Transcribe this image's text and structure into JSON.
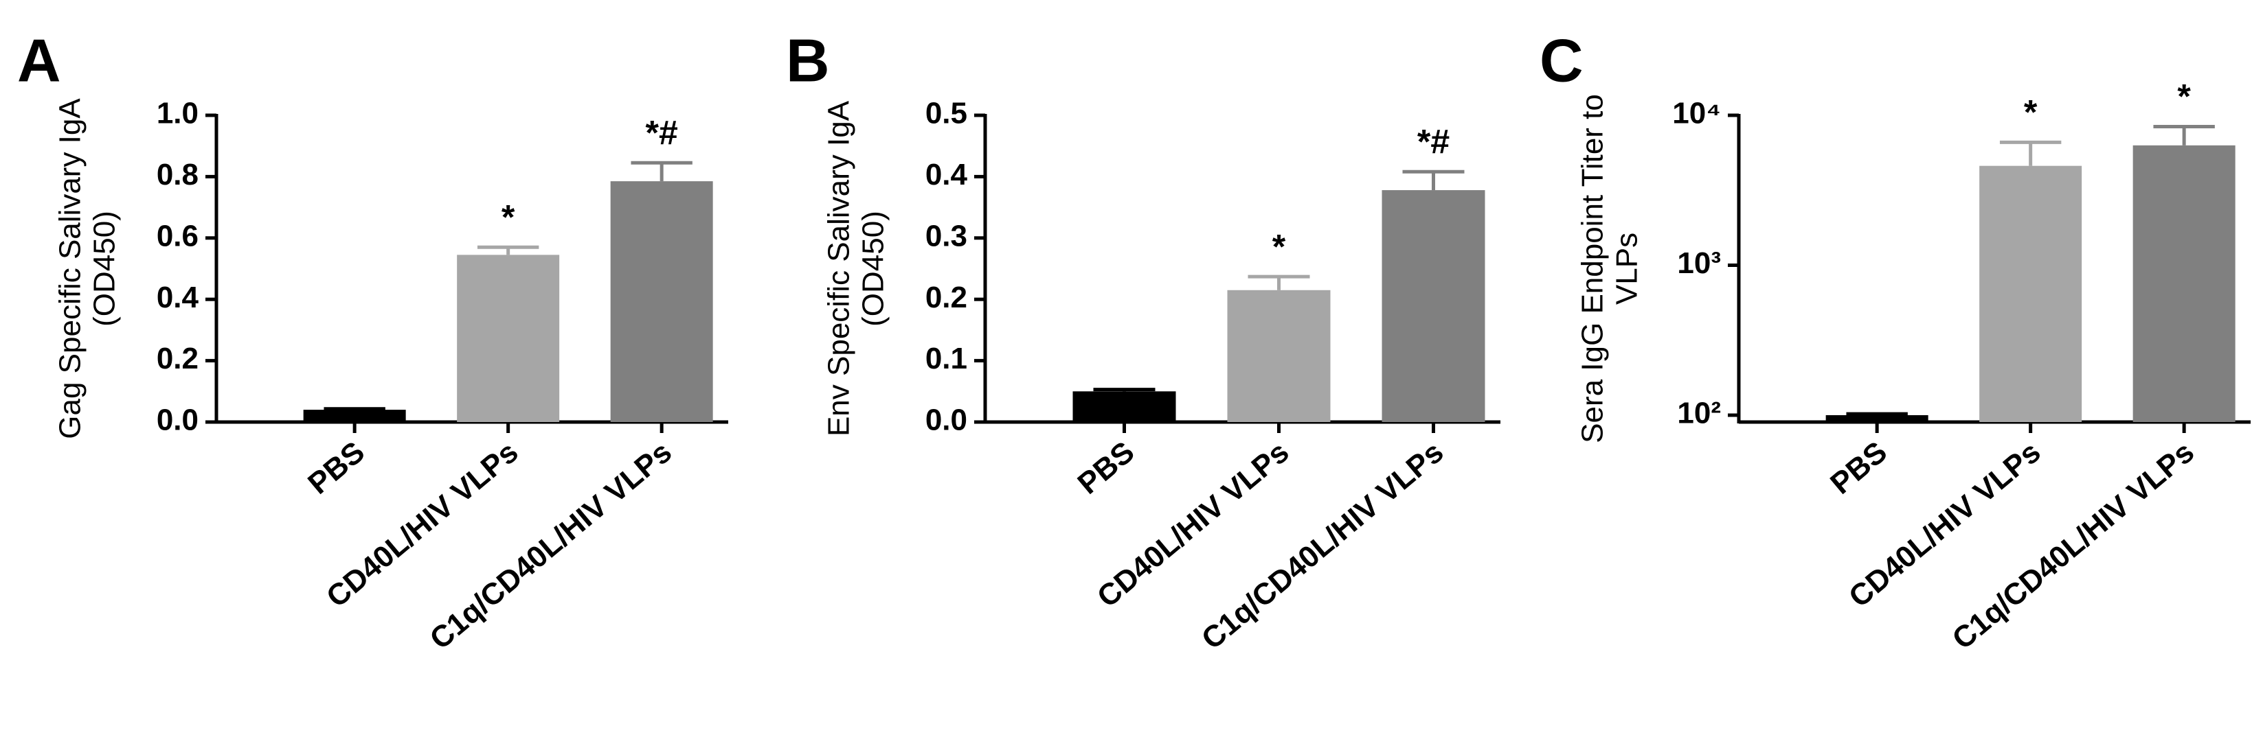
{
  "chart_data": [
    {
      "type": "bar",
      "panel": "A",
      "ylabel": [
        "Gag Specific Salivary IgA",
        "(OD450)"
      ],
      "categories": [
        "PBS",
        "CD40L/HIV VLPs",
        "C1q/CD40L/HIV VLPs"
      ],
      "values": [
        0.04,
        0.545,
        0.785
      ],
      "errors": [
        0.003,
        0.025,
        0.06
      ],
      "colors": [
        "#000000",
        "#a6a6a6",
        "#808080"
      ],
      "annotations": [
        null,
        "*",
        "*#"
      ],
      "ylim": [
        0,
        1.0
      ],
      "yticks": [
        {
          "value": 0,
          "label": "0.0"
        },
        {
          "value": 0.2,
          "label": "0.2"
        },
        {
          "value": 0.4,
          "label": "0.4"
        },
        {
          "value": 0.6,
          "label": "0.6"
        },
        {
          "value": 0.8,
          "label": "0.8"
        },
        {
          "value": 1.0,
          "label": "1.0"
        }
      ]
    },
    {
      "type": "bar",
      "panel": "B",
      "ylabel": [
        "Env Specific Salivary IgA",
        "(OD450)"
      ],
      "categories": [
        "PBS",
        "CD40L/HIV VLPs",
        "C1q/CD40L/HIV VLPs"
      ],
      "values": [
        0.05,
        0.215,
        0.378
      ],
      "errors": [
        0.003,
        0.022,
        0.03
      ],
      "colors": [
        "#000000",
        "#a6a6a6",
        "#808080"
      ],
      "annotations": [
        null,
        "*",
        "*#"
      ],
      "ylim": [
        0,
        0.5
      ],
      "yticks": [
        {
          "value": 0,
          "label": "0.0"
        },
        0.1,
        0.2,
        0.3,
        0.4,
        0.5
      ]
    },
    {
      "type": "bar",
      "panel": "C",
      "ylabel": [
        "Sera IgG Endpoint Titer to",
        "VLPs"
      ],
      "categories": [
        "PBS",
        "CD40L/HIV VLPs",
        "C1q/CD40L/HIV VLPs"
      ],
      "values": [
        100,
        4600,
        6300
      ],
      "errors": [
        2,
        2000,
        2100
      ],
      "colors": [
        "#000000",
        "#a6a6a6",
        "#808080"
      ],
      "annotations": [
        null,
        "*",
        "*"
      ],
      "yscale": "log",
      "ylim": [
        90,
        10000
      ],
      "yticks": [
        {
          "value": 100,
          "label": "10²"
        },
        {
          "value": 1000,
          "label": "10³"
        },
        {
          "value": 10000,
          "label": "10⁴"
        }
      ]
    }
  ]
}
